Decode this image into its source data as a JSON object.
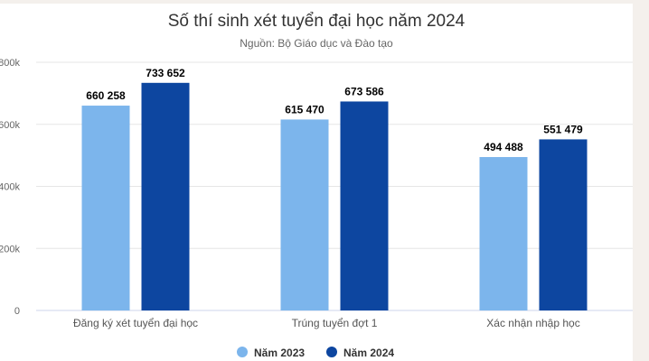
{
  "chart_data": {
    "type": "bar",
    "title": "Số thí sinh xét tuyển đại học năm 2024",
    "subtitle": "Nguồn: Bộ Giáo dục và Đào tạo",
    "xlabel": "",
    "ylabel": "",
    "ylim": [
      0,
      800000
    ],
    "yticks": [
      0,
      200000,
      400000,
      600000,
      800000
    ],
    "ytick_labels": [
      "0",
      "200k",
      "400k",
      "600k",
      "800k"
    ],
    "grid": true,
    "legend_position": "bottom-center",
    "categories": [
      "Đăng ký xét tuyển đại học",
      "Trúng tuyển đợt 1",
      "Xác nhận nhập học"
    ],
    "series": [
      {
        "name": "Năm 2023",
        "color": "#7cb5ec",
        "values": [
          660258,
          615470,
          494488
        ],
        "labels": [
          "660 258",
          "615 470",
          "494 488"
        ]
      },
      {
        "name": "Năm 2024",
        "color": "#0d46a0",
        "values": [
          733652,
          673586,
          551479
        ],
        "labels": [
          "733 652",
          "673 586",
          "551 479"
        ]
      }
    ]
  }
}
